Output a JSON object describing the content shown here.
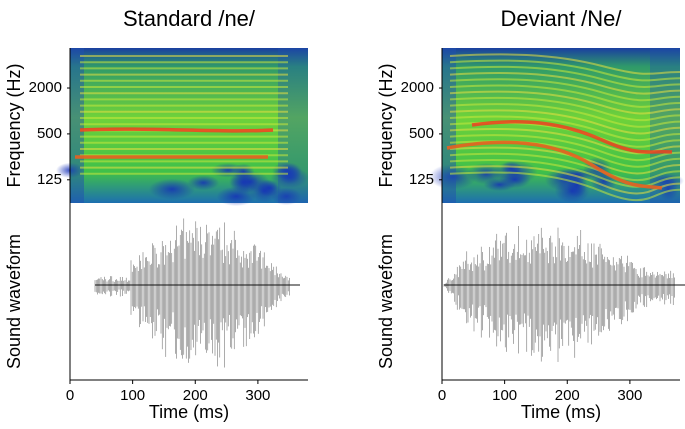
{
  "chart_data": [
    {
      "type": "spectrogram",
      "title": "Standard /ne/",
      "ylabel": "Frequency (Hz)",
      "y2label": "Sound waveform",
      "xlabel": "Time (ms)",
      "xlim": [
        0,
        380
      ],
      "xticks": [
        0,
        100,
        200,
        300
      ],
      "ylim": [
        62,
        6700
      ],
      "yticks": [
        125,
        500,
        2000
      ],
      "ylog": true,
      "contour": "flat"
    },
    {
      "type": "spectrogram",
      "title": "Deviant /Ne/",
      "ylabel": "Frequency (Hz)",
      "y2label": "Sound waveform",
      "xlabel": "Time (ms)",
      "xlim": [
        0,
        380
      ],
      "xticks": [
        0,
        100,
        200,
        300
      ],
      "ylim": [
        62,
        6700
      ],
      "yticks": [
        125,
        500,
        2000
      ],
      "ylog": true,
      "contour": "falling"
    }
  ]
}
